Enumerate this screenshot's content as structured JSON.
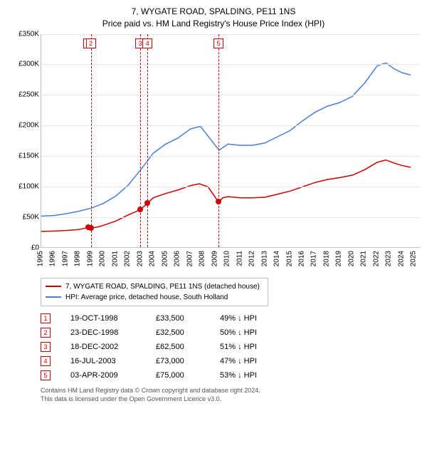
{
  "title_line1": "7, WYGATE ROAD, SPALDING, PE11 1NS",
  "title_line2": "Price paid vs. HM Land Registry's House Price Index (HPI)",
  "chart": {
    "type": "line",
    "background_color": "#ffffff",
    "grid_color": "#e6e6e6",
    "axis_color": "#c0c0c0",
    "text_color": "#000000",
    "y": {
      "min": 0,
      "max": 350000,
      "step": 50000,
      "labels": [
        "£0",
        "£50K",
        "£100K",
        "£150K",
        "£200K",
        "£250K",
        "£300K",
        "£350K"
      ]
    },
    "x": {
      "min": 1995,
      "max": 2025.5,
      "step": 1,
      "years": [
        1995,
        1996,
        1997,
        1998,
        1999,
        2000,
        2001,
        2002,
        2003,
        2004,
        2005,
        2006,
        2007,
        2008,
        2009,
        2010,
        2011,
        2012,
        2013,
        2014,
        2015,
        2016,
        2017,
        2018,
        2019,
        2020,
        2021,
        2022,
        2023,
        2024,
        2025
      ]
    },
    "series": [
      {
        "name": "property",
        "label": "7, WYGATE ROAD, SPALDING, PE11 1NS (detached house)",
        "color": "#cc0000",
        "line_width": 1.5,
        "points": [
          [
            1995,
            27000
          ],
          [
            1996,
            27500
          ],
          [
            1997,
            28500
          ],
          [
            1998,
            30000
          ],
          [
            1998.8,
            33500
          ],
          [
            1998.98,
            32500
          ],
          [
            1999.5,
            34000
          ],
          [
            2000,
            37000
          ],
          [
            2001,
            44000
          ],
          [
            2002,
            54000
          ],
          [
            2002.96,
            62500
          ],
          [
            2003.54,
            73000
          ],
          [
            2004,
            82000
          ],
          [
            2005,
            89000
          ],
          [
            2006,
            95000
          ],
          [
            2007,
            102000
          ],
          [
            2007.7,
            105000
          ],
          [
            2008.4,
            100000
          ],
          [
            2009.26,
            75000
          ],
          [
            2009.6,
            82000
          ],
          [
            2010,
            84000
          ],
          [
            2011,
            82000
          ],
          [
            2012,
            82000
          ],
          [
            2013,
            83000
          ],
          [
            2014,
            88000
          ],
          [
            2015,
            93000
          ],
          [
            2016,
            100000
          ],
          [
            2017,
            107000
          ],
          [
            2018,
            112000
          ],
          [
            2019,
            115000
          ],
          [
            2020,
            119000
          ],
          [
            2021,
            128000
          ],
          [
            2022,
            140000
          ],
          [
            2022.7,
            144000
          ],
          [
            2023.5,
            138000
          ],
          [
            2024,
            135000
          ],
          [
            2024.7,
            132000
          ]
        ]
      },
      {
        "name": "hpi",
        "label": "HPI: Average price, detached house, South Holland",
        "color": "#4a7fd6",
        "line_width": 1.5,
        "points": [
          [
            1995,
            52000
          ],
          [
            1996,
            53000
          ],
          [
            1997,
            56000
          ],
          [
            1998,
            60000
          ],
          [
            1999,
            65000
          ],
          [
            2000,
            73000
          ],
          [
            2001,
            85000
          ],
          [
            2002,
            103000
          ],
          [
            2003,
            128000
          ],
          [
            2004,
            155000
          ],
          [
            2005,
            170000
          ],
          [
            2006,
            180000
          ],
          [
            2007,
            195000
          ],
          [
            2007.8,
            199000
          ],
          [
            2008.6,
            178000
          ],
          [
            2009.3,
            160000
          ],
          [
            2010,
            170000
          ],
          [
            2011,
            168000
          ],
          [
            2012,
            168000
          ],
          [
            2013,
            172000
          ],
          [
            2014,
            182000
          ],
          [
            2015,
            192000
          ],
          [
            2016,
            208000
          ],
          [
            2017,
            222000
          ],
          [
            2018,
            232000
          ],
          [
            2019,
            238000
          ],
          [
            2020,
            248000
          ],
          [
            2021,
            270000
          ],
          [
            2022,
            298000
          ],
          [
            2022.7,
            303000
          ],
          [
            2023.4,
            293000
          ],
          [
            2024,
            287000
          ],
          [
            2024.7,
            283000
          ]
        ]
      }
    ],
    "markers": [
      {
        "n": "1",
        "year": 1998.8,
        "value": 33500,
        "color": "#cc0000",
        "show_vline": false
      },
      {
        "n": "2",
        "year": 1998.98,
        "value": 32500,
        "color": "#cc0000",
        "show_vline": true
      },
      {
        "n": "3",
        "year": 2002.96,
        "value": 62500,
        "color": "#cc0000",
        "show_vline": true
      },
      {
        "n": "4",
        "year": 2003.54,
        "value": 73000,
        "color": "#cc0000",
        "show_vline": true
      },
      {
        "n": "5",
        "year": 2009.26,
        "value": 75000,
        "color": "#cc0000",
        "show_vline": true
      }
    ]
  },
  "legend": [
    {
      "color": "#cc0000",
      "label": "7, WYGATE ROAD, SPALDING, PE11 1NS (detached house)"
    },
    {
      "color": "#4a7fd6",
      "label": "HPI: Average price, detached house, South Holland"
    }
  ],
  "sales": [
    {
      "n": "1",
      "date": "19-OCT-1998",
      "price": "£33,500",
      "diff": "49% ↓ HPI",
      "color": "#cc0000"
    },
    {
      "n": "2",
      "date": "23-DEC-1998",
      "price": "£32,500",
      "diff": "50% ↓ HPI",
      "color": "#cc0000"
    },
    {
      "n": "3",
      "date": "18-DEC-2002",
      "price": "£62,500",
      "diff": "51% ↓ HPI",
      "color": "#cc0000"
    },
    {
      "n": "4",
      "date": "16-JUL-2003",
      "price": "£73,000",
      "diff": "47% ↓ HPI",
      "color": "#cc0000"
    },
    {
      "n": "5",
      "date": "03-APR-2009",
      "price": "£75,000",
      "diff": "53% ↓ HPI",
      "color": "#cc0000"
    }
  ],
  "footer_line1": "Contains HM Land Registry data © Crown copyright and database right 2024.",
  "footer_line2": "This data is licensed under the Open Government Licence v3.0."
}
